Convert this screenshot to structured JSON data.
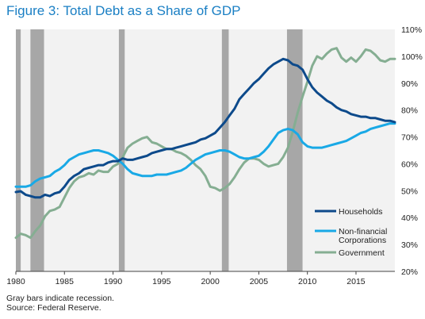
{
  "figure": {
    "title": "Figure 3: Total Debt as a Share of GDP",
    "footnotes": [
      "Gray bars indicate recession.",
      "Source: Federal Reserve."
    ]
  },
  "colors": {
    "households": "#0d4a8b",
    "corporations": "#19a9e6",
    "government": "#85ae92",
    "recession": "#a7a7a7",
    "plot_background": "#f2f2f2"
  },
  "chart_data": {
    "type": "line",
    "xlim": [
      1980,
      2019
    ],
    "ylim": [
      20,
      110
    ],
    "x_ticks": [
      1980,
      1985,
      1990,
      1995,
      2000,
      2005,
      2010,
      2015
    ],
    "x_tick_labels": [
      "1980",
      "1985",
      "1990",
      "1995",
      "2000",
      "2005",
      "2010",
      "2015"
    ],
    "y_ticks": [
      20,
      30,
      40,
      50,
      60,
      70,
      80,
      90,
      100,
      110
    ],
    "y_tick_labels": [
      "20%",
      "30%",
      "40%",
      "50%",
      "60%",
      "70%",
      "80%",
      "90%",
      "100%",
      "110%"
    ],
    "y_axis_side": "right",
    "grid": false,
    "legend_placement": "bottom-right",
    "recessions": [
      [
        1980.0,
        1980.5
      ],
      [
        1981.5,
        1982.9
      ],
      [
        1990.6,
        1991.2
      ],
      [
        2001.2,
        2001.9
      ],
      [
        2007.9,
        2009.5
      ]
    ],
    "series": [
      {
        "name": "Households",
        "x": [
          1980,
          1980.5,
          1981,
          1981.5,
          1982,
          1982.5,
          1983,
          1983.5,
          1984,
          1984.5,
          1985,
          1985.5,
          1986,
          1986.5,
          1987,
          1987.5,
          1988,
          1988.5,
          1989,
          1989.5,
          1990,
          1990.5,
          1991,
          1991.5,
          1992,
          1992.5,
          1993,
          1993.5,
          1994,
          1994.5,
          1995,
          1995.5,
          1996,
          1996.5,
          1997,
          1997.5,
          1998,
          1998.5,
          1999,
          1999.5,
          2000,
          2000.5,
          2001,
          2001.5,
          2002,
          2002.5,
          2003,
          2003.5,
          2004,
          2004.5,
          2005,
          2005.5,
          2006,
          2006.5,
          2007,
          2007.5,
          2008,
          2008.5,
          2009,
          2009.5,
          2010,
          2010.5,
          2011,
          2011.5,
          2012,
          2012.5,
          2013,
          2013.5,
          2014,
          2014.5,
          2015,
          2015.5,
          2016,
          2016.5,
          2017,
          2017.5,
          2018,
          2018.5,
          2019
        ],
        "values": [
          49.5,
          49.8,
          48.5,
          48.0,
          47.5,
          47.5,
          48.5,
          48.0,
          49.0,
          49.5,
          51.5,
          54.0,
          55.5,
          56.5,
          58.0,
          58.5,
          59.0,
          59.5,
          59.5,
          60.5,
          61.0,
          61.0,
          62.0,
          61.5,
          61.5,
          62.0,
          62.5,
          63.0,
          64.0,
          64.5,
          65.0,
          65.5,
          65.5,
          66.0,
          66.5,
          67.0,
          67.5,
          68.0,
          69.0,
          69.5,
          70.5,
          71.5,
          73.5,
          75.5,
          78.0,
          80.5,
          84.0,
          86.0,
          88.0,
          90.0,
          91.5,
          93.5,
          95.5,
          97.0,
          98.0,
          99.0,
          98.5,
          97.0,
          96.5,
          95.0,
          91.5,
          88.5,
          86.5,
          85.0,
          83.5,
          82.5,
          81.0,
          80.0,
          79.5,
          78.5,
          78.0,
          77.5,
          77.5,
          77.0,
          77.0,
          76.5,
          76.0,
          76.0,
          75.5
        ]
      },
      {
        "name": "Non-financial Corporations",
        "x": [
          1980,
          1980.5,
          1981,
          1981.5,
          1982,
          1982.5,
          1983,
          1983.5,
          1984,
          1984.5,
          1985,
          1985.5,
          1986,
          1986.5,
          1987,
          1987.5,
          1988,
          1988.5,
          1989,
          1989.5,
          1990,
          1990.5,
          1991,
          1991.5,
          1992,
          1992.5,
          1993,
          1993.5,
          1994,
          1994.5,
          1995,
          1995.5,
          1996,
          1996.5,
          1997,
          1997.5,
          1998,
          1998.5,
          1999,
          1999.5,
          2000,
          2000.5,
          2001,
          2001.5,
          2002,
          2002.5,
          2003,
          2003.5,
          2004,
          2004.5,
          2005,
          2005.5,
          2006,
          2006.5,
          2007,
          2007.5,
          2008,
          2008.5,
          2009,
          2009.5,
          2010,
          2010.5,
          2011,
          2011.5,
          2012,
          2012.5,
          2013,
          2013.5,
          2014,
          2014.5,
          2015,
          2015.5,
          2016,
          2016.5,
          2017,
          2017.5,
          2018,
          2018.5,
          2019
        ],
        "values": [
          51.5,
          51.5,
          51.5,
          52.0,
          53.5,
          54.5,
          55.0,
          55.5,
          57.0,
          58.0,
          59.5,
          61.5,
          62.5,
          63.5,
          64.0,
          64.5,
          65.0,
          65.0,
          64.5,
          64.0,
          63.0,
          61.5,
          60.0,
          58.0,
          56.5,
          56.0,
          55.5,
          55.5,
          55.5,
          56.0,
          56.0,
          56.0,
          56.5,
          57.0,
          57.5,
          58.5,
          60.0,
          61.5,
          62.5,
          63.5,
          64.0,
          64.5,
          65.0,
          65.0,
          64.5,
          63.5,
          62.5,
          62.0,
          62.0,
          62.5,
          63.0,
          64.5,
          66.5,
          69.0,
          71.5,
          72.5,
          73.0,
          72.5,
          71.0,
          68.0,
          66.5,
          66.0,
          66.0,
          66.0,
          66.5,
          67.0,
          67.5,
          68.0,
          68.5,
          69.5,
          70.5,
          71.5,
          72.0,
          73.0,
          73.5,
          74.0,
          74.5,
          75.0,
          75.0
        ]
      },
      {
        "name": "Government",
        "x": [
          1980,
          1980.5,
          1981,
          1981.5,
          1982,
          1982.5,
          1983,
          1983.5,
          1984,
          1984.5,
          1985,
          1985.5,
          1986,
          1986.5,
          1987,
          1987.5,
          1988,
          1988.5,
          1989,
          1989.5,
          1990,
          1990.5,
          1991,
          1991.5,
          1992,
          1992.5,
          1993,
          1993.5,
          1994,
          1994.5,
          1995,
          1995.5,
          1996,
          1996.5,
          1997,
          1997.5,
          1998,
          1998.5,
          1999,
          1999.5,
          2000,
          2000.5,
          2001,
          2001.5,
          2002,
          2002.5,
          2003,
          2003.5,
          2004,
          2004.5,
          2005,
          2005.5,
          2006,
          2006.5,
          2007,
          2007.5,
          2008,
          2008.5,
          2009,
          2009.5,
          2010,
          2010.5,
          2011,
          2011.5,
          2012,
          2012.5,
          2013,
          2013.5,
          2014,
          2014.5,
          2015,
          2015.5,
          2016,
          2016.5,
          2017,
          2017.5,
          2018,
          2018.5,
          2019
        ],
        "values": [
          32.5,
          34.0,
          33.5,
          32.5,
          35.0,
          37.0,
          40.5,
          42.5,
          43.0,
          44.0,
          47.5,
          51.0,
          53.5,
          55.0,
          55.5,
          56.5,
          56.0,
          57.5,
          57.0,
          57.0,
          59.0,
          60.0,
          62.5,
          66.0,
          67.5,
          68.5,
          69.5,
          70.0,
          68.0,
          67.5,
          66.5,
          65.5,
          65.5,
          64.5,
          64.0,
          63.0,
          61.5,
          59.5,
          58.0,
          55.5,
          51.5,
          51.0,
          50.0,
          51.0,
          52.5,
          55.0,
          58.0,
          60.5,
          62.0,
          62.0,
          61.5,
          60.0,
          59.0,
          59.5,
          60.0,
          62.5,
          66.0,
          72.0,
          79.0,
          85.0,
          90.5,
          96.5,
          100.0,
          99.0,
          101.0,
          102.5,
          103.0,
          99.5,
          98.0,
          99.5,
          98.0,
          100.0,
          102.5,
          102.0,
          100.5,
          98.5,
          98.0,
          99.0,
          99.0
        ]
      }
    ]
  }
}
